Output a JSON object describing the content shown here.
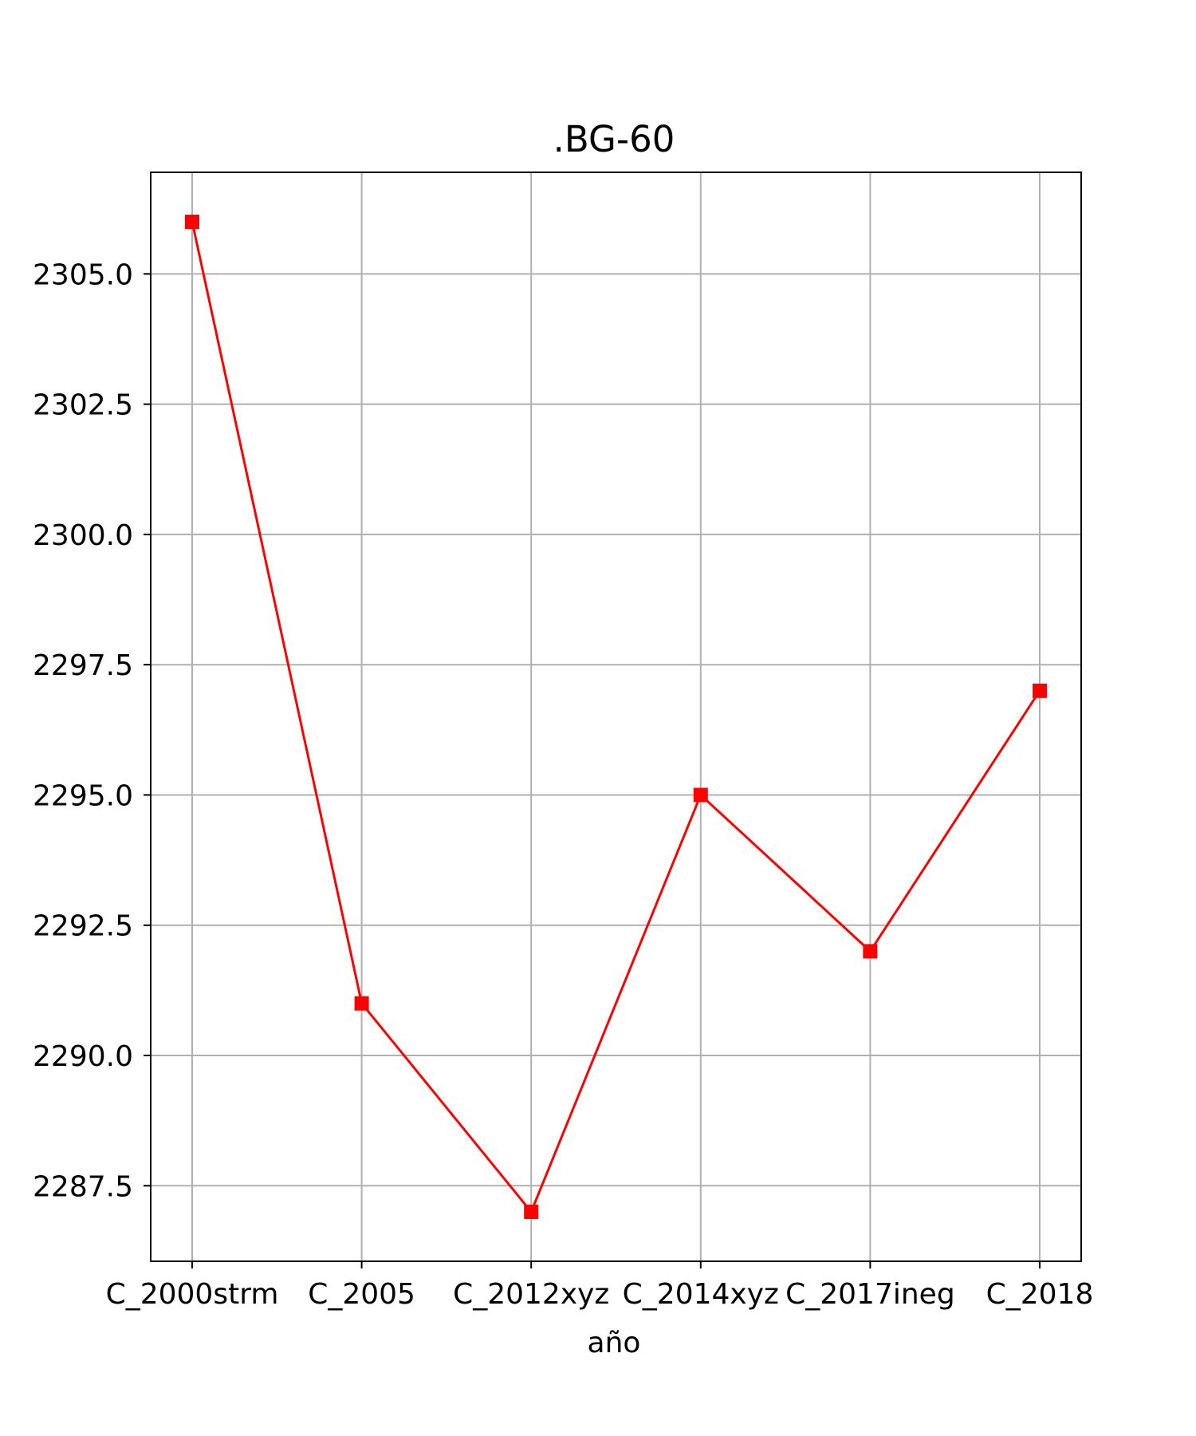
{
  "chart_data": {
    "type": "line",
    "title": ".BG-60",
    "xlabel": "año",
    "ylabel": "",
    "categories": [
      "C_2000strm",
      "C_2005",
      "C_2012xyz",
      "C_2014xyz",
      "C_2017ineg",
      "C_2018"
    ],
    "series": [
      {
        "values": [
          2306,
          2291,
          2287,
          2295,
          2292,
          2297
        ],
        "color": "#ff0000",
        "marker": "square"
      }
    ],
    "ylim": [
      2286.05,
      2306.95
    ],
    "yticks": [
      2287.5,
      2290.0,
      2292.5,
      2295.0,
      2297.5,
      2300.0,
      2302.5,
      2305.0
    ],
    "ytick_labels": [
      "2287.5",
      "2290.0",
      "2292.5",
      "2295.0",
      "2297.5",
      "2300.0",
      "2302.5",
      "2305.0"
    ],
    "grid": true,
    "legend": "none"
  },
  "colors": {
    "line": "#ff0000",
    "grid": "#b0b0b0",
    "axes": "#000000"
  }
}
